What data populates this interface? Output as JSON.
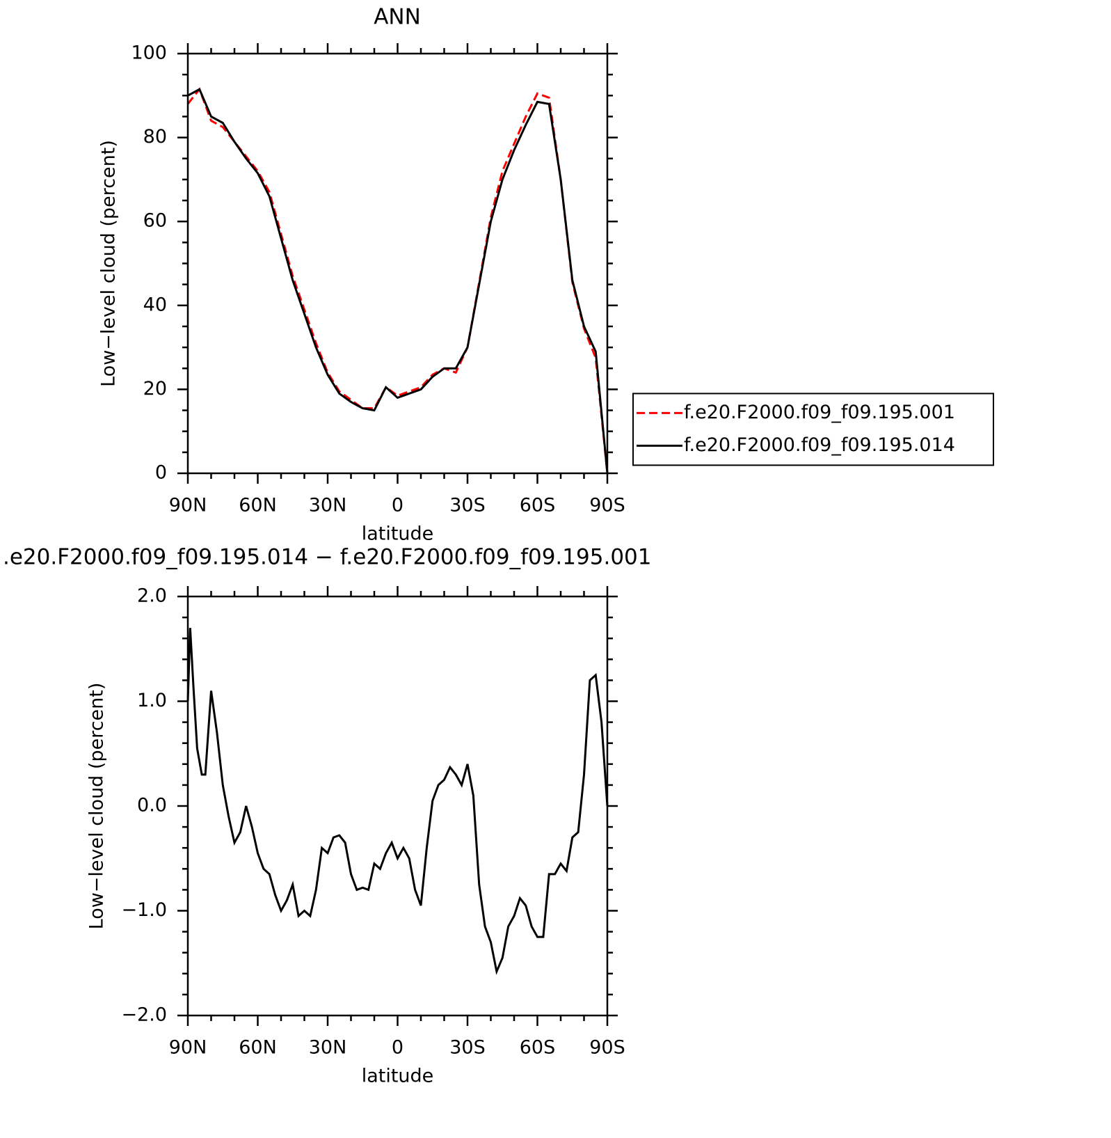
{
  "chart_data": [
    {
      "type": "line",
      "title": "ANN",
      "xlabel": "latitude",
      "ylabel": "Low−level cloud (percent)",
      "x": [
        90,
        85,
        80,
        75,
        70,
        65,
        60,
        55,
        50,
        45,
        40,
        35,
        30,
        25,
        20,
        15,
        10,
        5,
        0,
        -5,
        -10,
        -15,
        -20,
        -25,
        -30,
        -35,
        -40,
        -45,
        -50,
        -55,
        -60,
        -65,
        -70,
        -75,
        -80,
        -85,
        -90
      ],
      "series": [
        {
          "name": "f.e20.F2000.f09_f09.195.001",
          "color": "#ff0000",
          "line_style": "dashed",
          "values": [
            88,
            91.5,
            84,
            82.5,
            79,
            75.5,
            72,
            67,
            57,
            47,
            39,
            31,
            24,
            19.5,
            17.5,
            15.5,
            15.5,
            20.5,
            18.5,
            19.5,
            20.5,
            23.5,
            25,
            24,
            30,
            45.5,
            61,
            72,
            78.5,
            85,
            90.5,
            89.5,
            70,
            45.5,
            34.5,
            27.5,
            0
          ]
        },
        {
          "name": "f.e20.F2000.f09_f09.195.014",
          "color": "#000000",
          "line_style": "solid",
          "values": [
            90,
            91.5,
            85,
            83.5,
            79,
            75,
            71.5,
            66,
            56,
            46,
            38,
            30,
            23.5,
            19,
            17,
            15.5,
            15,
            20.5,
            18,
            19,
            20,
            23,
            25,
            25,
            30,
            45,
            60,
            70,
            77,
            83,
            88.5,
            88,
            70,
            46,
            35,
            29,
            0
          ]
        }
      ],
      "xlim": [
        90,
        -90
      ],
      "xticks": [
        {
          "value": 90,
          "label": "90N"
        },
        {
          "value": 60,
          "label": "60N"
        },
        {
          "value": 30,
          "label": "30N"
        },
        0,
        {
          "value": -30,
          "label": "30S"
        },
        {
          "value": -60,
          "label": "60S"
        },
        {
          "value": -90,
          "label": "90S"
        }
      ],
      "ylim": [
        0,
        100
      ],
      "yticks": [
        0,
        20,
        40,
        60,
        80,
        100
      ],
      "legend": "right"
    },
    {
      "type": "line",
      "title": ".e20.F2000.f09_f09.195.014 − f.e20.F2000.f09_f09.195.001",
      "xlabel": "latitude",
      "ylabel": "Low−level cloud (percent)",
      "x": [
        90,
        89,
        87.5,
        86,
        84,
        82.5,
        80,
        77.5,
        75,
        72.5,
        70,
        67.5,
        65,
        62.5,
        60,
        57.5,
        55,
        52.5,
        50,
        47.5,
        45,
        42.5,
        40,
        37.5,
        35,
        32.5,
        30,
        27.5,
        25,
        22.5,
        20,
        17.5,
        15,
        12.5,
        10,
        7.5,
        5,
        2.5,
        0,
        -2.5,
        -5,
        -7.5,
        -10,
        -12.5,
        -15,
        -17.5,
        -20,
        -22.5,
        -25,
        -27.5,
        -30,
        -32.5,
        -35,
        -37.5,
        -40,
        -42.5,
        -45,
        -47.5,
        -50,
        -52.5,
        -55,
        -57.5,
        -60,
        -62.5,
        -65,
        -67.5,
        -70,
        -72.5,
        -75,
        -77.5,
        -80,
        -82.5,
        -85,
        -87.5,
        -90
      ],
      "values": [
        1.0,
        1.7,
        1.1,
        0.55,
        0.3,
        0.3,
        1.1,
        0.7,
        0.2,
        -0.1,
        -0.35,
        -0.25,
        0.0,
        -0.2,
        -0.45,
        -0.6,
        -0.65,
        -0.85,
        -1.0,
        -0.9,
        -0.75,
        -1.05,
        -1.0,
        -1.05,
        -0.8,
        -0.4,
        -0.45,
        -0.3,
        -0.28,
        -0.35,
        -0.65,
        -0.8,
        -0.78,
        -0.8,
        -0.55,
        -0.6,
        -0.45,
        -0.35,
        -0.5,
        -0.4,
        -0.5,
        -0.8,
        -0.95,
        -0.4,
        0.05,
        0.2,
        0.25,
        0.37,
        0.3,
        0.2,
        0.4,
        0.1,
        -0.75,
        -1.15,
        -1.3,
        -1.58,
        -1.45,
        -1.15,
        -1.05,
        -0.88,
        -0.95,
        -1.15,
        -1.25,
        -1.25,
        -0.65,
        -0.65,
        -0.55,
        -0.62,
        -0.3,
        -0.25,
        0.3,
        1.2,
        1.25,
        0.8,
        0.0
      ],
      "color": "#000000",
      "xlim": [
        90,
        -90
      ],
      "xticks": [
        {
          "value": 90,
          "label": "90N"
        },
        {
          "value": 60,
          "label": "60N"
        },
        {
          "value": 30,
          "label": "30N"
        },
        0,
        {
          "value": -30,
          "label": "30S"
        },
        {
          "value": -60,
          "label": "60S"
        },
        {
          "value": -90,
          "label": "90S"
        }
      ],
      "ylim": [
        -2,
        2
      ],
      "yticks": [
        {
          "value": -2,
          "label": "−2.0"
        },
        {
          "value": -1,
          "label": "−1.0"
        },
        {
          "value": 0,
          "label": "0.0"
        },
        {
          "value": 1,
          "label": "1.0"
        },
        {
          "value": 2,
          "label": "2.0"
        }
      ]
    }
  ]
}
